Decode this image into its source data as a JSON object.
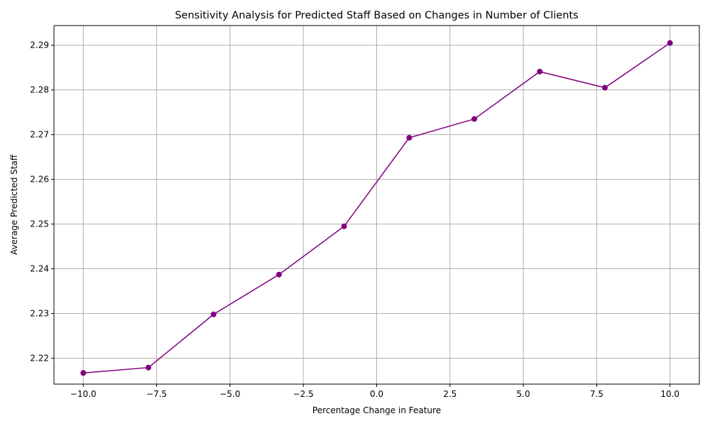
{
  "chart_data": {
    "type": "line",
    "title": "Sensitivity Analysis for Predicted Staff Based on Changes in Number of Clients",
    "xlabel": "Percentage Change in Feature",
    "ylabel": "Average Predicted Staff",
    "xlim": [
      -11.0,
      11.0
    ],
    "ylim": [
      2.2142,
      2.2944
    ],
    "grid": true,
    "x_ticks": [
      -10.0,
      -7.5,
      -5.0,
      -2.5,
      0.0,
      2.5,
      5.0,
      7.5,
      10.0
    ],
    "x_tick_labels": [
      "−10.0",
      "−7.5",
      "−5.0",
      "−2.5",
      "0.0",
      "2.5",
      "5.0",
      "7.5",
      "10.0"
    ],
    "y_ticks": [
      2.22,
      2.23,
      2.24,
      2.25,
      2.26,
      2.27,
      2.28,
      2.29
    ],
    "y_tick_labels": [
      "2.22",
      "2.23",
      "2.24",
      "2.25",
      "2.26",
      "2.27",
      "2.28",
      "2.29"
    ],
    "series": [
      {
        "color": "#800080",
        "marker": "circle",
        "x": [
          -10.0,
          -7.78,
          -5.56,
          -3.33,
          -1.11,
          1.11,
          3.33,
          5.56,
          7.78,
          10.0
        ],
        "y": [
          2.2167,
          2.2179,
          2.2298,
          2.2387,
          2.2495,
          2.2693,
          2.2735,
          2.2841,
          2.2805,
          2.2905
        ]
      }
    ]
  }
}
